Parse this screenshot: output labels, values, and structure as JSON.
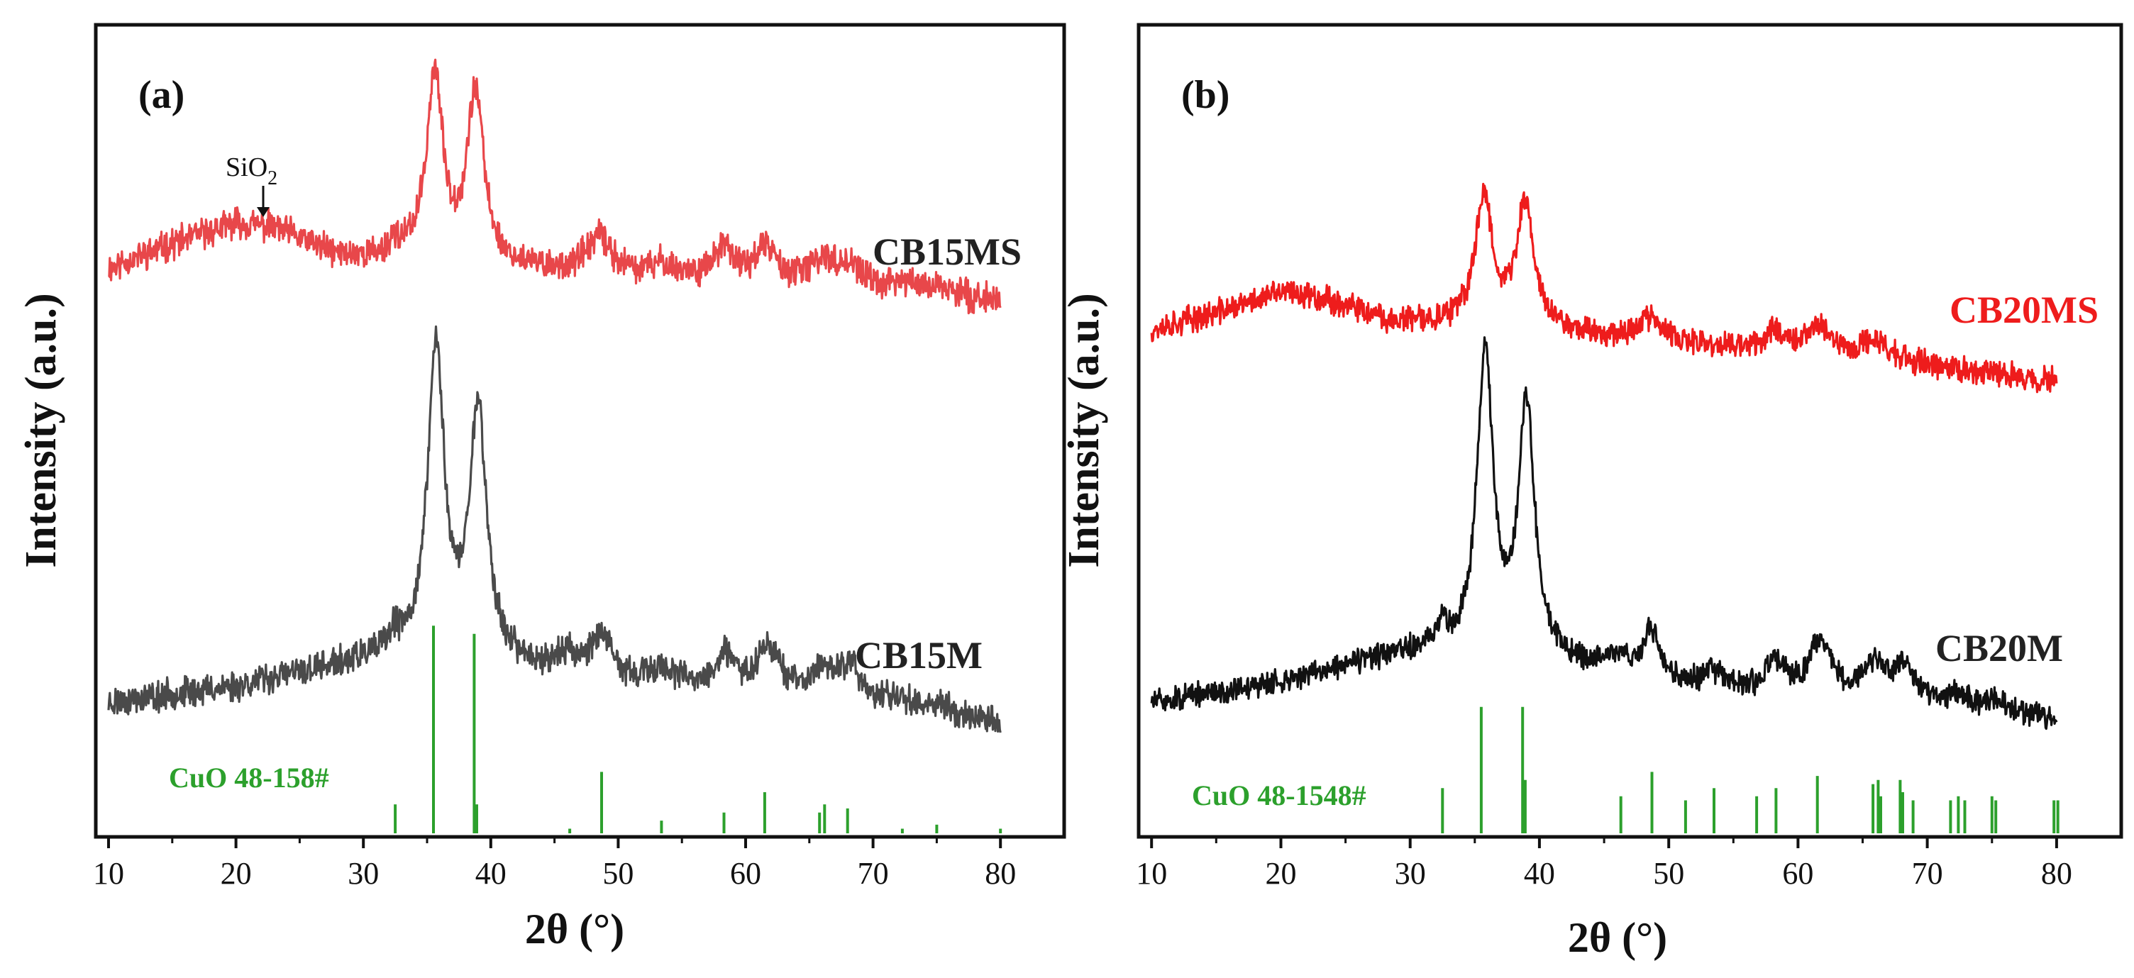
{
  "chart_data": [
    {
      "type": "line",
      "panel_label": "(a)",
      "xlabel": "2θ (°)",
      "ylabel": "Intensity (a.u.)",
      "xlim": [
        9,
        85
      ],
      "ylim": [
        0,
        100
      ],
      "xticks": [
        10,
        20,
        30,
        40,
        50,
        60,
        70,
        80
      ],
      "grid": false,
      "annotation": {
        "text": "SiO",
        "subscript": "2",
        "x": 22.3,
        "y": 76
      },
      "series": [
        {
          "name": "CB15MS",
          "color": "#e8474a",
          "noise": 1.5,
          "seed": 11,
          "base": [
            [
              10,
              70
            ],
            [
              15,
              73
            ],
            [
              20,
              75.5
            ],
            [
              23,
              75
            ],
            [
              28,
              71.5
            ],
            [
              32,
              71
            ],
            [
              34,
              71.5
            ],
            [
              40,
              70
            ],
            [
              50,
              69
            ],
            [
              60,
              68.5
            ],
            [
              70,
              67.5
            ],
            [
              80,
              66
            ]
          ],
          "peaks": [
            [
              35.6,
              22.5,
              0.75
            ],
            [
              38.8,
              21,
              0.8
            ],
            [
              32.4,
              2,
              0.4
            ],
            [
              48.5,
              4.5,
              1.2
            ],
            [
              53.5,
              1.5,
              1
            ],
            [
              58.3,
              3.5,
              1
            ],
            [
              61.6,
              4,
              1
            ],
            [
              66.1,
              3,
              1
            ],
            [
              68.1,
              2.5,
              1
            ],
            [
              72.5,
              1,
              1
            ],
            [
              75.2,
              1,
              1
            ]
          ]
        },
        {
          "name": "CB15M",
          "color": "#4a4a4a",
          "noise": 1.5,
          "seed": 23,
          "base": [
            [
              10,
              16.5
            ],
            [
              20,
              18.5
            ],
            [
              25,
              20
            ],
            [
              30,
              21.5
            ],
            [
              33,
              22
            ],
            [
              40,
              21
            ],
            [
              50,
              19
            ],
            [
              60,
              17.5
            ],
            [
              70,
              16.5
            ],
            [
              80,
              14
            ]
          ],
          "peaks": [
            [
              35.7,
              38,
              0.8
            ],
            [
              39,
              31,
              0.8
            ],
            [
              32.4,
              2,
              0.4
            ],
            [
              46,
              2,
              1.2
            ],
            [
              48.6,
              5,
              1
            ],
            [
              53.5,
              2,
              1
            ],
            [
              58.4,
              4,
              1
            ],
            [
              61.8,
              6,
              1.1
            ],
            [
              66.2,
              3.5,
              1
            ],
            [
              68.2,
              4,
              0.9
            ],
            [
              72.5,
              1,
              1
            ],
            [
              75.3,
              1,
              1
            ]
          ]
        }
      ],
      "reference": {
        "label": "CuO 48-158#",
        "color": "#2ca02c",
        "lines": [
          [
            32.5,
            4
          ],
          [
            35.5,
            26
          ],
          [
            38.7,
            25
          ],
          [
            38.9,
            4
          ],
          [
            46.2,
            1
          ],
          [
            48.7,
            8
          ],
          [
            53.4,
            2
          ],
          [
            58.3,
            3
          ],
          [
            61.5,
            5.5
          ],
          [
            65.8,
            3
          ],
          [
            66.2,
            4
          ],
          [
            68.0,
            3.5
          ],
          [
            72.3,
            1
          ],
          [
            75.0,
            1.5
          ],
          [
            80.0,
            1
          ]
        ]
      },
      "labels": {
        "CB15MS": "CB15MS",
        "CB15M": "CB15M"
      }
    },
    {
      "type": "line",
      "panel_label": "(b)",
      "xlabel": "2θ (°)",
      "ylabel": "Intensity (a.u.)",
      "xlim": [
        9,
        85
      ],
      "ylim": [
        0,
        100
      ],
      "xticks": [
        10,
        20,
        30,
        40,
        50,
        60,
        70,
        80
      ],
      "grid": false,
      "series": [
        {
          "name": "CB20MS",
          "color": "#ee1c1c",
          "noise": 1.3,
          "seed": 37,
          "base": [
            [
              10,
              62.5
            ],
            [
              15,
              64.5
            ],
            [
              20,
              67
            ],
            [
              23,
              66.5
            ],
            [
              28,
              63.5
            ],
            [
              33,
              63
            ],
            [
              40,
              62.5
            ],
            [
              50,
              60.5
            ],
            [
              60,
              59.5
            ],
            [
              70,
              58
            ],
            [
              80,
              56
            ]
          ],
          "peaks": [
            [
              35.7,
              16,
              0.8
            ],
            [
              38.9,
              15,
              0.8
            ],
            [
              48.5,
              3,
              1.2
            ],
            [
              58.3,
              2.5,
              1
            ],
            [
              61.6,
              3.5,
              1.1
            ],
            [
              66.0,
              2.5,
              1.2
            ]
          ]
        },
        {
          "name": "CB20M",
          "color": "#111111",
          "noise": 1.2,
          "seed": 51,
          "base": [
            [
              10,
              16.5
            ],
            [
              20,
              19
            ],
            [
              25,
              21
            ],
            [
              30,
              22.5
            ],
            [
              33,
              22.5
            ],
            [
              40,
              21.5
            ],
            [
              50,
              18.5
            ],
            [
              60,
              17
            ],
            [
              70,
              16.5
            ],
            [
              80,
              14.5
            ]
          ],
          "peaks": [
            [
              35.8,
              37,
              0.75
            ],
            [
              39,
              31,
              0.75
            ],
            [
              32.5,
              3,
              0.4
            ],
            [
              46,
              2,
              1.2
            ],
            [
              48.7,
              6,
              0.8
            ],
            [
              53.5,
              2,
              1
            ],
            [
              58.3,
              4,
              0.9
            ],
            [
              61.7,
              7,
              1
            ],
            [
              66.0,
              4.5,
              1
            ],
            [
              68.3,
              4,
              0.9
            ],
            [
              72.3,
              1,
              1
            ],
            [
              75.0,
              1,
              1
            ]
          ]
        }
      ],
      "reference": {
        "label": "CuO 48-1548#",
        "color": "#2ca02c",
        "lines": [
          [
            32.5,
            6
          ],
          [
            35.5,
            16
          ],
          [
            38.7,
            16
          ],
          [
            38.9,
            7
          ],
          [
            46.3,
            5
          ],
          [
            48.7,
            8
          ],
          [
            51.3,
            4.5
          ],
          [
            53.5,
            6
          ],
          [
            56.8,
            5
          ],
          [
            58.3,
            6
          ],
          [
            61.5,
            7.5
          ],
          [
            65.8,
            6.5
          ],
          [
            66.2,
            7
          ],
          [
            66.4,
            5
          ],
          [
            67.9,
            7
          ],
          [
            68.1,
            5.5
          ],
          [
            68.9,
            4.5
          ],
          [
            71.8,
            4.5
          ],
          [
            72.4,
            5
          ],
          [
            72.9,
            4.5
          ],
          [
            75.0,
            5
          ],
          [
            75.3,
            4.5
          ],
          [
            79.8,
            4.5
          ],
          [
            80.1,
            4.5
          ]
        ]
      },
      "labels": {
        "CB20MS": "CB20MS",
        "CB20M": "CB20M"
      }
    }
  ]
}
